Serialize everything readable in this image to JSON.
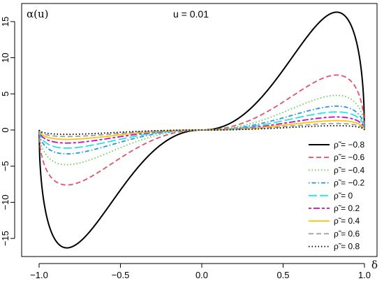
{
  "chart_data": {
    "type": "line",
    "title": "",
    "ylabel_text": "α(u)",
    "xlabel_text": "δ",
    "annotation": "u = 0.01",
    "xlim": [
      -1.0,
      1.0
    ],
    "ylim": [
      -17.5,
      17.5
    ],
    "x_ticks": [
      -1.0,
      -0.5,
      0.0,
      0.5,
      1.0
    ],
    "x_tick_labels": [
      "−1.0",
      "−0.5",
      "0.0",
      "0.5",
      "1.0"
    ],
    "y_ticks": [
      -15,
      -10,
      -5,
      0,
      5,
      10,
      15
    ],
    "y_tick_labels": [
      "−15",
      "−10",
      "−5",
      "0",
      "5",
      "10",
      "15"
    ],
    "grid": false,
    "legend_position": "bottom-right",
    "series": [
      {
        "name": "ρ̃ = −0.8",
        "color": "#000000",
        "dash": "solid",
        "amplitude": 16.3
      },
      {
        "name": "ρ̃ = −0.6",
        "color": "#DF536B",
        "dash": "dashed",
        "amplitude": 7.6
      },
      {
        "name": "ρ̃ = −0.4",
        "color": "#61D04F",
        "dash": "dotted",
        "amplitude": 4.8
      },
      {
        "name": "ρ̃ = −0.2",
        "color": "#2297E6",
        "dash": "dotdash",
        "amplitude": 3.3
      },
      {
        "name": "ρ̃ = 0",
        "color": "#28E2E5",
        "dash": "longdash",
        "amplitude": 2.5
      },
      {
        "name": "ρ̃ = 0.2",
        "color": "#CD0BBC",
        "dash": "twodash",
        "amplitude": 1.8
      },
      {
        "name": "ρ̃ = 0.4",
        "color": "#F5C710",
        "dash": "solid",
        "amplitude": 1.3
      },
      {
        "name": "ρ̃ = 0.6",
        "color": "#9E9E9E",
        "dash": "dashed",
        "amplitude": 0.9
      },
      {
        "name": "ρ̃ = 0.8",
        "color": "#000000",
        "dash": "dotted",
        "amplitude": 0.6
      }
    ]
  }
}
